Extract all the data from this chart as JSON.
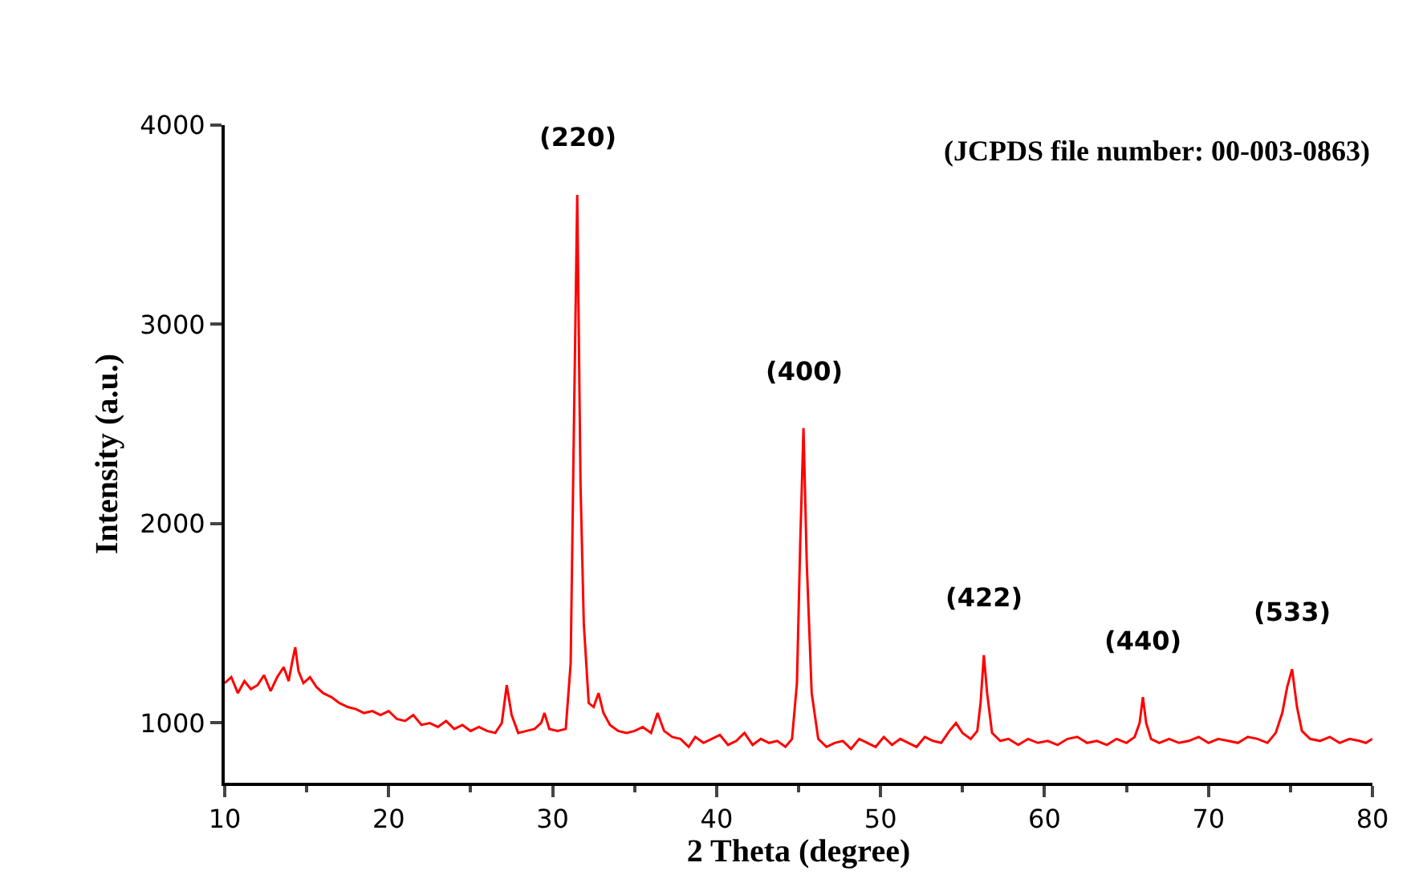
{
  "chart_data": {
    "type": "line",
    "xlabel": "2 Theta (degree)",
    "ylabel": "Intensity (a.u.)",
    "x": [
      10,
      10.4,
      10.8,
      11.2,
      11.6,
      12,
      12.4,
      12.8,
      13.2,
      13.6,
      13.9,
      14.1,
      14.3,
      14.5,
      14.8,
      15.2,
      15.6,
      16,
      16.5,
      17,
      17.5,
      18,
      18.5,
      19,
      19.5,
      20,
      20.5,
      21,
      21.5,
      22,
      22.5,
      23,
      23.5,
      24,
      24.5,
      25,
      25.5,
      26,
      26.5,
      26.9,
      27.2,
      27.5,
      27.9,
      28.4,
      28.9,
      29.3,
      29.5,
      29.8,
      30.3,
      30.8,
      31.1,
      31.3,
      31.5,
      31.7,
      31.9,
      32.2,
      32.5,
      32.8,
      33.1,
      33.5,
      34,
      34.5,
      35,
      35.5,
      36,
      36.4,
      36.8,
      37.3,
      37.8,
      38.3,
      38.7,
      39.2,
      39.7,
      40.2,
      40.7,
      41.2,
      41.7,
      42.2,
      42.7,
      43.2,
      43.7,
      44.2,
      44.6,
      44.9,
      45.1,
      45.3,
      45.5,
      45.8,
      46.2,
      46.7,
      47.2,
      47.7,
      48.2,
      48.7,
      49.2,
      49.7,
      50.2,
      50.7,
      51.2,
      51.7,
      52.2,
      52.7,
      53.2,
      53.7,
      54.2,
      54.6,
      55,
      55.5,
      55.9,
      56.1,
      56.3,
      56.5,
      56.8,
      57.3,
      57.8,
      58.4,
      59,
      59.6,
      60.2,
      60.8,
      61.4,
      62,
      62.6,
      63.2,
      63.8,
      64.4,
      65,
      65.5,
      65.8,
      66,
      66.2,
      66.5,
      67,
      67.6,
      68.2,
      68.8,
      69.4,
      70,
      70.6,
      71.2,
      71.8,
      72.4,
      73,
      73.6,
      74.1,
      74.5,
      74.8,
      75.1,
      75.4,
      75.7,
      76.2,
      76.8,
      77.4,
      78,
      78.6,
      79.2,
      79.6,
      80
    ],
    "series": [
      {
        "color": "#ff0000",
        "values": [
          1200,
          1230,
          1150,
          1210,
          1170,
          1190,
          1240,
          1160,
          1230,
          1280,
          1210,
          1300,
          1380,
          1260,
          1200,
          1230,
          1180,
          1150,
          1130,
          1100,
          1080,
          1070,
          1050,
          1060,
          1040,
          1060,
          1020,
          1010,
          1040,
          990,
          1000,
          980,
          1010,
          970,
          990,
          960,
          980,
          960,
          950,
          1000,
          1190,
          1040,
          950,
          960,
          970,
          1000,
          1050,
          970,
          960,
          970,
          1300,
          2500,
          3650,
          2200,
          1500,
          1100,
          1080,
          1150,
          1050,
          990,
          960,
          950,
          960,
          980,
          950,
          1050,
          960,
          930,
          920,
          880,
          930,
          900,
          920,
          940,
          890,
          910,
          950,
          890,
          920,
          900,
          910,
          880,
          920,
          1200,
          1900,
          2480,
          1800,
          1150,
          920,
          880,
          900,
          910,
          870,
          920,
          900,
          880,
          930,
          890,
          920,
          900,
          880,
          930,
          910,
          900,
          960,
          1000,
          950,
          920,
          960,
          1100,
          1340,
          1150,
          950,
          910,
          920,
          890,
          920,
          900,
          910,
          890,
          920,
          930,
          900,
          910,
          890,
          920,
          900,
          930,
          1000,
          1130,
          1000,
          920,
          900,
          920,
          900,
          910,
          930,
          900,
          920,
          910,
          900,
          930,
          920,
          900,
          950,
          1050,
          1180,
          1270,
          1080,
          960,
          920,
          910,
          930,
          900,
          920,
          910,
          900,
          920
        ]
      }
    ],
    "xlim": [
      10,
      80
    ],
    "ylim": [
      700,
      4000
    ],
    "xticks": [
      10,
      20,
      30,
      40,
      50,
      60,
      70,
      80
    ],
    "yticks": [
      1000,
      2000,
      3000,
      4000
    ],
    "marker": "none",
    "line_style": "solid",
    "annotations": [
      {
        "text": "(220)",
        "x": 31.5,
        "y": 3650
      },
      {
        "text": "(400)",
        "x": 45.3,
        "y": 2480
      },
      {
        "text": "(422)",
        "x": 56.3,
        "y": 1340
      },
      {
        "text": "(440)",
        "x": 66,
        "y": 1130
      },
      {
        "text": "(533)",
        "x": 75.1,
        "y": 1270
      },
      "(JCPDS file number: 00-003-0863)"
    ]
  }
}
